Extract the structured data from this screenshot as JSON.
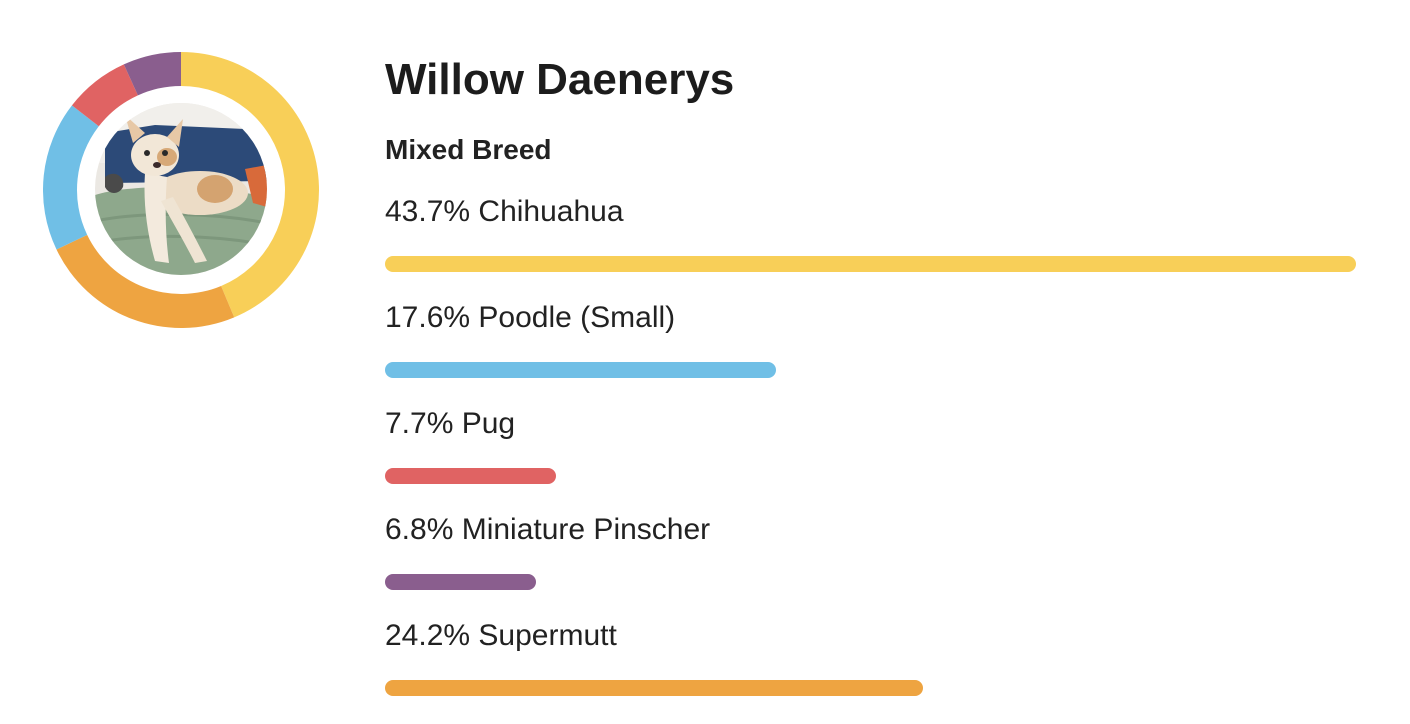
{
  "profile": {
    "name": "Willow Daenerys",
    "breed_type": "Mixed Breed",
    "photo": "dog-photo"
  },
  "breeds": [
    {
      "label": "43.7% Chihuahua",
      "percent": 43.7,
      "color": "#f8cf58"
    },
    {
      "label": "17.6% Poodle (Small)",
      "percent": 17.6,
      "color": "#70bfe6"
    },
    {
      "label": "7.7% Pug",
      "percent": 7.7,
      "color": "#e06363"
    },
    {
      "label": "6.8% Miniature Pinscher",
      "percent": 6.8,
      "color": "#8a5e8e"
    },
    {
      "label": "24.2% Supermutt",
      "percent": 24.2,
      "color": "#eea441"
    }
  ],
  "donut_order": [
    0,
    4,
    1,
    2,
    3
  ]
}
